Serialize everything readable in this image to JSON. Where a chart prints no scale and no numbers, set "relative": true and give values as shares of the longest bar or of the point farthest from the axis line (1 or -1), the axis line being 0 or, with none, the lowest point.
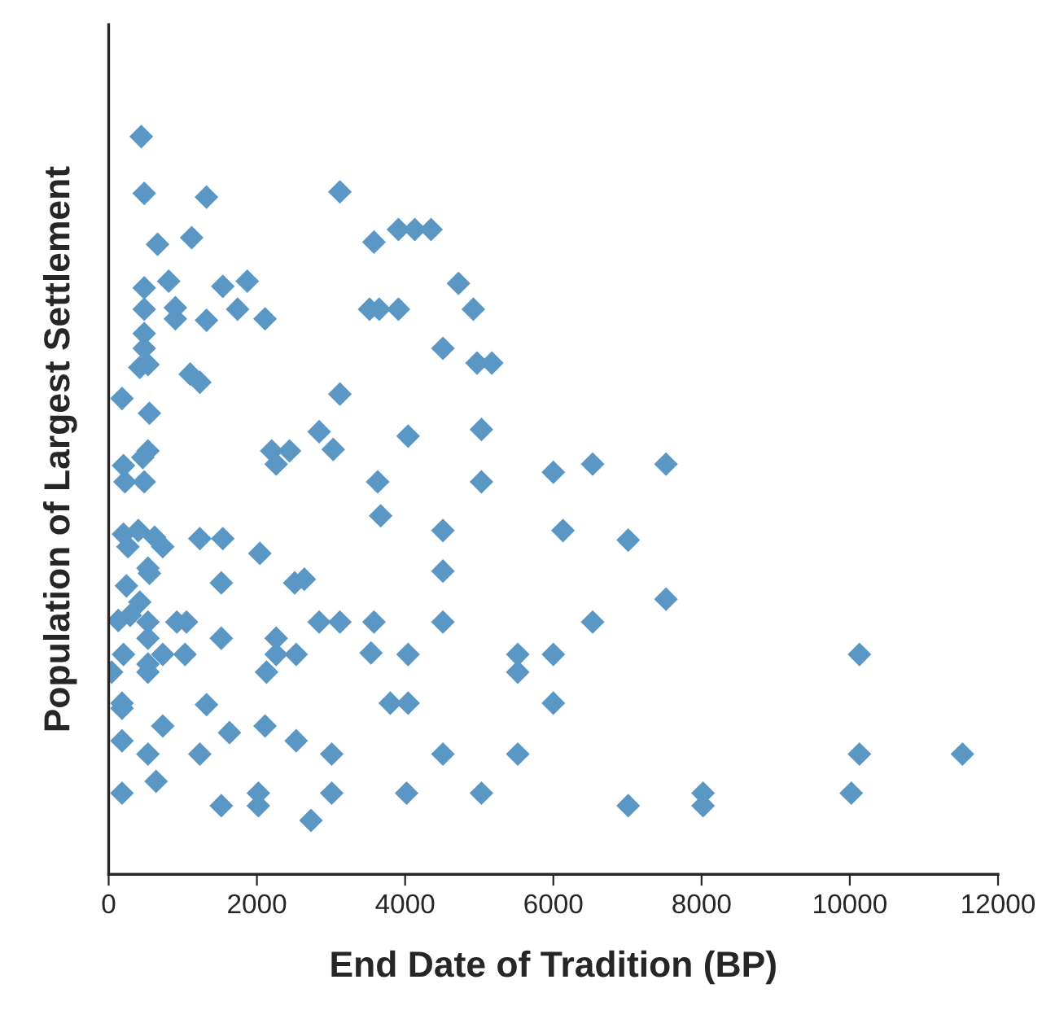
{
  "chart_data": {
    "type": "scatter",
    "xlabel": "End Date of Tradition (BP)",
    "ylabel": "Population of Largest Settlement",
    "relative": true,
    "xlim": [
      0,
      12000
    ],
    "xticks": [
      0,
      2000,
      4000,
      6000,
      8000,
      10000,
      12000
    ],
    "tick_labels": "x",
    "grid": false,
    "legend": false,
    "marker": "diamond",
    "series": [
      {
        "color": "#5b97c4",
        "x": [
          440,
          480,
          1320,
          3120,
          660,
          1120,
          3580,
          3910,
          4130,
          4350,
          480,
          810,
          1540,
          1870,
          4720,
          480,
          900,
          900,
          1320,
          1740,
          2110,
          3520,
          3650,
          3910,
          4920,
          480,
          480,
          420,
          530,
          1100,
          1230,
          4510,
          4970,
          5170,
          180,
          550,
          3120,
          530,
          460,
          200,
          220,
          480,
          2200,
          2440,
          2260,
          2840,
          3030,
          4040,
          5030,
          3630,
          5030,
          6000,
          6530,
          7520,
          3670,
          200,
          400,
          620,
          730,
          260,
          1230,
          1540,
          2040,
          4510,
          6130,
          7010,
          240,
          530,
          550,
          1520,
          2510,
          2640,
          4510,
          7520,
          130,
          290,
          420,
          530,
          920,
          1050,
          1520,
          2260,
          2840,
          3120,
          3580,
          4510,
          6530,
          530,
          200,
          730,
          1030,
          530,
          530,
          2260,
          2530,
          3540,
          4040,
          5520,
          6000,
          10130,
          40,
          2130,
          5520,
          180,
          180,
          1320,
          3800,
          4040,
          6000,
          730,
          2110,
          180,
          1630,
          2530,
          530,
          1230,
          3010,
          4510,
          5520,
          10130,
          11520,
          180,
          640,
          2020,
          3010,
          4020,
          5030,
          8020,
          10020,
          1520,
          2020,
          7010,
          8020,
          2730
        ],
        "values": [
          1.0,
          0.923,
          0.918,
          0.925,
          0.854,
          0.863,
          0.857,
          0.874,
          0.874,
          0.874,
          0.795,
          0.804,
          0.797,
          0.804,
          0.801,
          0.766,
          0.768,
          0.753,
          0.751,
          0.766,
          0.753,
          0.766,
          0.766,
          0.766,
          0.766,
          0.733,
          0.713,
          0.687,
          0.691,
          0.678,
          0.667,
          0.713,
          0.693,
          0.693,
          0.645,
          0.625,
          0.651,
          0.574,
          0.565,
          0.554,
          0.532,
          0.532,
          0.574,
          0.574,
          0.556,
          0.6,
          0.576,
          0.594,
          0.603,
          0.532,
          0.532,
          0.545,
          0.556,
          0.556,
          0.486,
          0.461,
          0.466,
          0.457,
          0.444,
          0.444,
          0.455,
          0.455,
          0.435,
          0.466,
          0.466,
          0.453,
          0.391,
          0.415,
          0.408,
          0.395,
          0.395,
          0.4,
          0.411,
          0.373,
          0.344,
          0.351,
          0.369,
          0.342,
          0.342,
          0.342,
          0.32,
          0.32,
          0.342,
          0.342,
          0.342,
          0.342,
          0.342,
          0.32,
          0.298,
          0.298,
          0.298,
          0.285,
          0.274,
          0.298,
          0.298,
          0.3,
          0.298,
          0.298,
          0.298,
          0.298,
          0.274,
          0.274,
          0.274,
          0.232,
          0.225,
          0.23,
          0.232,
          0.232,
          0.232,
          0.201,
          0.201,
          0.181,
          0.192,
          0.181,
          0.163,
          0.163,
          0.163,
          0.163,
          0.163,
          0.163,
          0.163,
          0.11,
          0.126,
          0.11,
          0.11,
          0.11,
          0.11,
          0.11,
          0.11,
          0.093,
          0.093,
          0.093,
          0.093,
          0.073
        ]
      }
    ]
  }
}
